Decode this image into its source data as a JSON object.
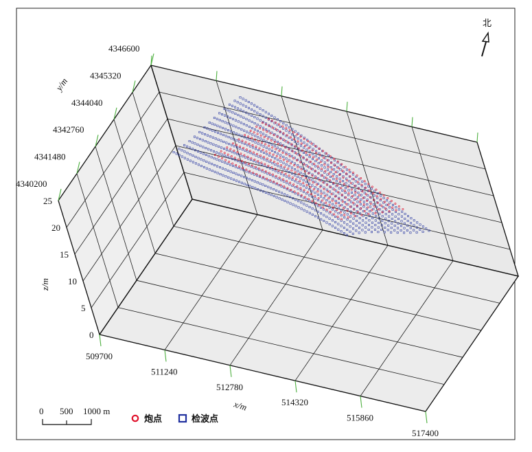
{
  "chart_data": {
    "type": "scatter",
    "projection": "3d",
    "x_axis": {
      "label": "x/m",
      "ticks": [
        "509700",
        "511240",
        "512780",
        "514320",
        "515860",
        "517400"
      ],
      "range": [
        509700,
        517400
      ]
    },
    "y_axis": {
      "label": "y/m",
      "ticks": [
        "4340200",
        "4341480",
        "4342760",
        "4344040",
        "4345320",
        "4346600"
      ],
      "range": [
        4340200,
        4346600
      ]
    },
    "z_axis": {
      "label": "z/m",
      "ticks": [
        "0",
        "5",
        "10",
        "15",
        "20",
        "25"
      ],
      "range": [
        0,
        25
      ]
    },
    "grid": true,
    "legend_position": "bottom",
    "series": [
      {
        "name": "炮点",
        "marker": "circle",
        "color": "#e0102a"
      },
      {
        "name": "检波点",
        "marker": "square",
        "color": "#1f2f9e"
      }
    ],
    "shot_region": {
      "x": [
        511900,
        516300
      ],
      "y": [
        4342300,
        4346400
      ],
      "z": [
        20,
        23
      ]
    },
    "receiver_region": {
      "x": [
        510900,
        516900
      ],
      "y": [
        4341600,
        4346600
      ],
      "z": [
        19,
        24
      ]
    }
  },
  "north": {
    "label": "北"
  },
  "scale_bar": {
    "ticks": [
      "0",
      "500",
      "1000 m"
    ]
  }
}
